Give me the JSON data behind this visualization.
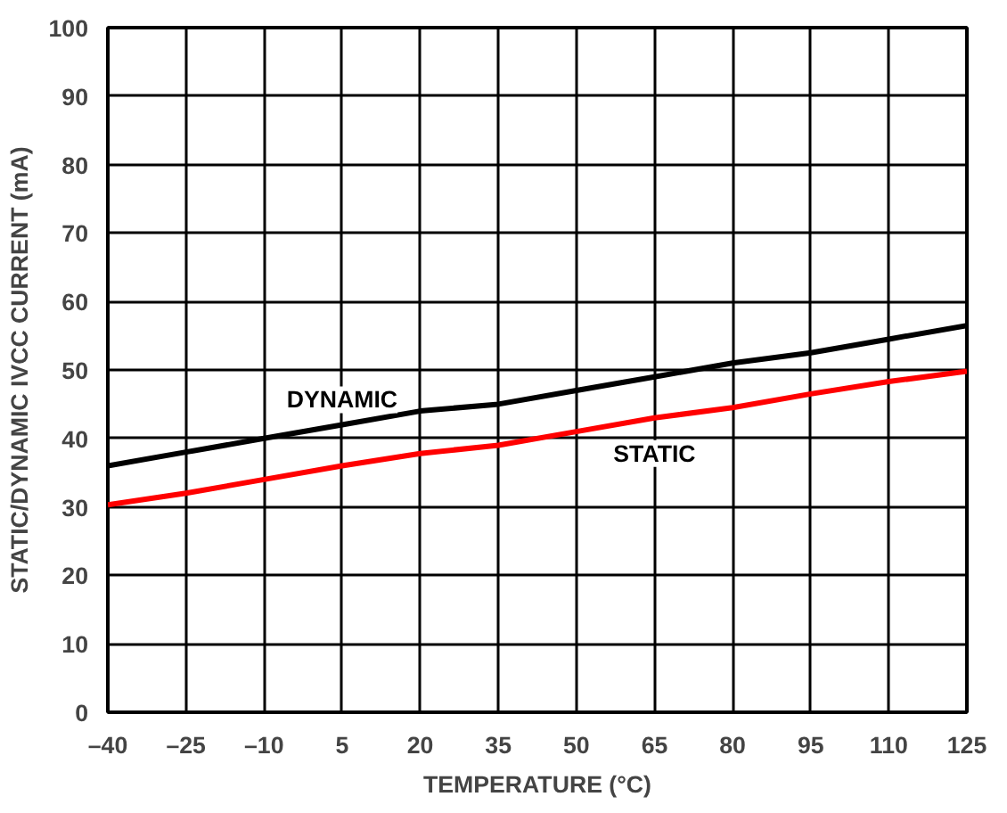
{
  "chart_data": {
    "type": "line",
    "xlabel": "TEMPERATURE (°C)",
    "ylabel": "STATIC/DYNAMIC IVCC CURRENT (mA)",
    "x": [
      -40,
      -25,
      -10,
      5,
      20,
      35,
      50,
      65,
      80,
      95,
      110,
      125
    ],
    "series": [
      {
        "name": "DYNAMIC",
        "color": "#000000",
        "values": [
          36,
          38,
          40,
          42,
          44,
          45,
          47,
          49,
          51,
          52.5,
          54.5,
          56.5
        ]
      },
      {
        "name": "STATIC",
        "color": "#ff0000",
        "values": [
          30.3,
          32,
          34,
          36,
          37.8,
          39,
          41,
          43,
          44.5,
          46.5,
          48.3,
          49.8
        ]
      }
    ],
    "xlim": [
      -40,
      125
    ],
    "ylim": [
      0,
      100
    ],
    "xticks": [
      {
        "value": -40,
        "label": "–40"
      },
      {
        "value": -25,
        "label": "–25"
      },
      {
        "value": -10,
        "label": "–10"
      },
      5,
      20,
      35,
      50,
      65,
      80,
      95,
      110,
      125
    ],
    "yticks": [
      0,
      10,
      20,
      30,
      40,
      50,
      60,
      70,
      80,
      90,
      100
    ],
    "grid": true,
    "marker": "none",
    "line_style": "solid"
  }
}
